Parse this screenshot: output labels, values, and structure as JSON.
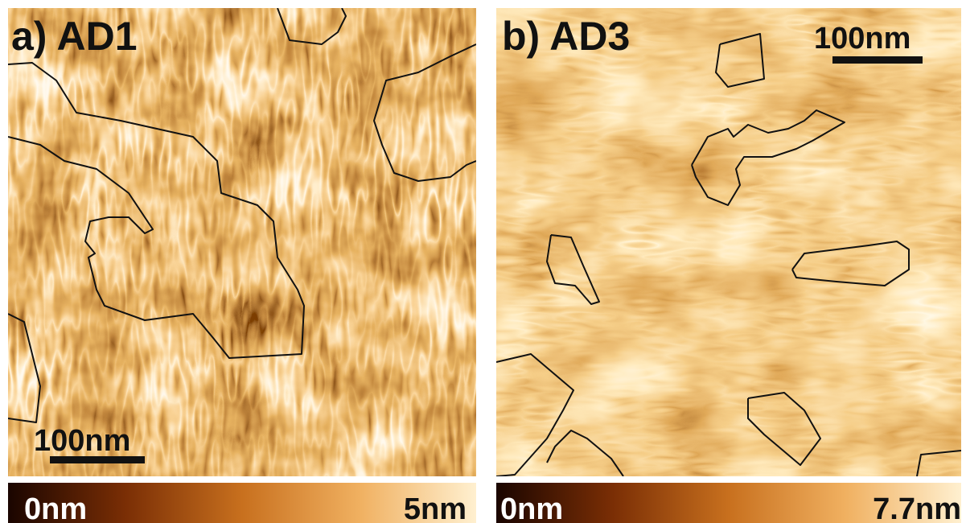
{
  "panels": [
    {
      "label": "a) AD1",
      "scale_bar": "100nm",
      "colorbar_min": "0nm",
      "colorbar_max": "5nm"
    },
    {
      "label": "b) AD3",
      "scale_bar": "100nm",
      "colorbar_min": "0nm",
      "colorbar_max": "7.7nm"
    }
  ]
}
